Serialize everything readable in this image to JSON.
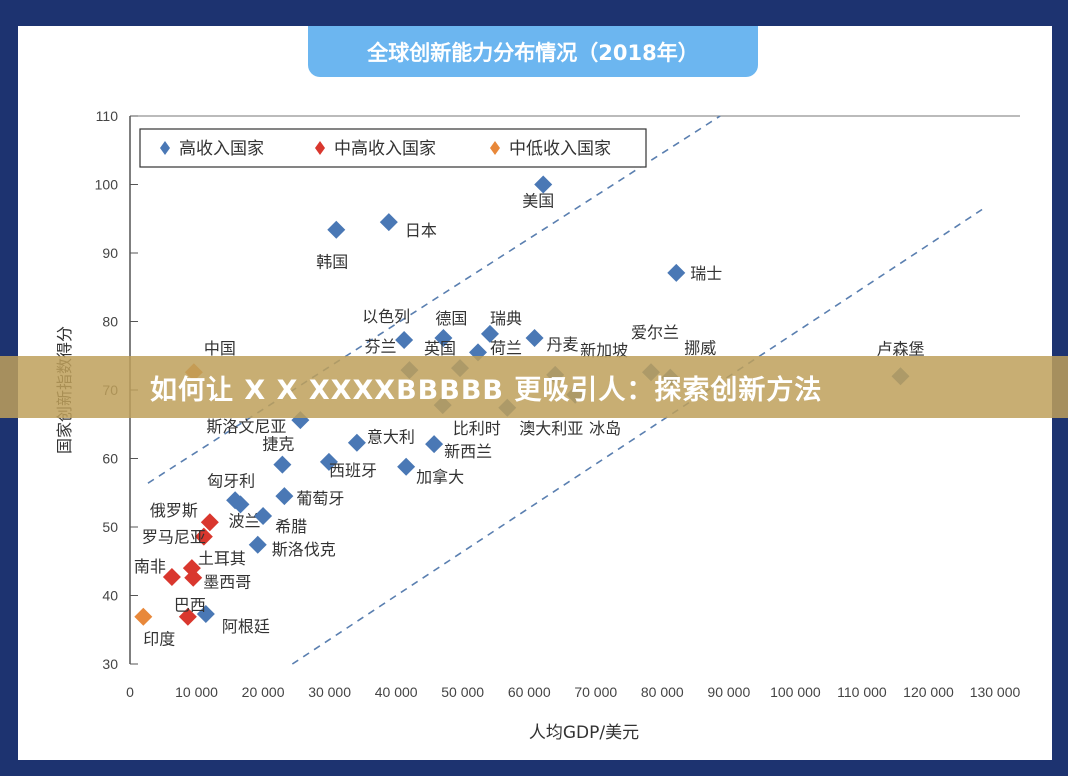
{
  "banner": {
    "text": "如何让 X X XXXXBBBBB 更吸引人：探索创新方法"
  },
  "chart_data": {
    "type": "scatter",
    "title": "全球创新能力分布情况（2018年）",
    "xlabel": "人均GDP/美元",
    "ylabel": "国家创新指数得分",
    "xlim": [
      0,
      130000
    ],
    "ylim": [
      30,
      110
    ],
    "xticks": [
      0,
      10000,
      20000,
      30000,
      40000,
      50000,
      60000,
      70000,
      80000,
      90000,
      100000,
      110000,
      120000,
      130000
    ],
    "xtick_labels": [
      "0",
      "10 000",
      "20 000",
      "30 000",
      "40 000",
      "50 000",
      "60 000",
      "70 000",
      "80 000",
      "90 000",
      "100 000",
      "110 000",
      "120 000",
      "130 000"
    ],
    "yticks": [
      30,
      40,
      50,
      60,
      70,
      80,
      90,
      100,
      110
    ],
    "grid": false,
    "legend_position": "top-left",
    "series": [
      {
        "name": "高收入国家",
        "color": "#4a78b5",
        "points": [
          {
            "label": "美国",
            "x": 62100,
            "y": 100
          },
          {
            "label": "瑞士",
            "x": 82100,
            "y": 87.1
          },
          {
            "label": "日本",
            "x": 38900,
            "y": 94.5
          },
          {
            "label": "韩国",
            "x": 31000,
            "y": 93.4
          },
          {
            "label": "以色列",
            "x": 41200,
            "y": 77.3
          },
          {
            "label": "德国",
            "x": 47100,
            "y": 77.6
          },
          {
            "label": "瑞典",
            "x": 54100,
            "y": 78.2
          },
          {
            "label": "丹麦",
            "x": 60800,
            "y": 77.6
          },
          {
            "label": "芬兰",
            "x": 42000,
            "y": 72.9
          },
          {
            "label": "英国",
            "x": 49600,
            "y": 73.2
          },
          {
            "label": "荷兰",
            "x": 52300,
            "y": 75.5
          },
          {
            "label": "新加坡",
            "x": 63900,
            "y": 72.2
          },
          {
            "label": "爱尔兰",
            "x": 78300,
            "y": 72.6
          },
          {
            "label": "挪威",
            "x": 81200,
            "y": 71.8
          },
          {
            "label": "冰岛",
            "x": 66900,
            "y": 69.3
          },
          {
            "label": "卢森堡",
            "x": 115800,
            "y": 72.0
          },
          {
            "label": "比利时",
            "x": 47000,
            "y": 67.8
          },
          {
            "label": "澳大利亚",
            "x": 56700,
            "y": 67.4
          },
          {
            "label": "斯洛文尼亚",
            "x": 25600,
            "y": 65.6
          },
          {
            "label": "捷克",
            "x": 22900,
            "y": 59.1
          },
          {
            "label": "意大利",
            "x": 34100,
            "y": 62.3
          },
          {
            "label": "西班牙",
            "x": 29900,
            "y": 59.5
          },
          {
            "label": "新西兰",
            "x": 45700,
            "y": 62.1
          },
          {
            "label": "加拿大",
            "x": 41500,
            "y": 58.8
          },
          {
            "label": "匈牙利",
            "x": 15800,
            "y": 53.9
          },
          {
            "label": "波兰",
            "x": 16600,
            "y": 53.3
          },
          {
            "label": "葡萄牙",
            "x": 23200,
            "y": 54.5
          },
          {
            "label": "希腊",
            "x": 20000,
            "y": 51.6
          },
          {
            "label": "斯洛伐克",
            "x": 19200,
            "y": 47.4
          },
          {
            "label": "阿根廷",
            "x": 11400,
            "y": 37.3
          }
        ]
      },
      {
        "name": "中高收入国家",
        "color": "#d9372e",
        "points": [
          {
            "label": "俄罗斯",
            "x": 12000,
            "y": 50.7
          },
          {
            "label": "罗马尼亚",
            "x": 11100,
            "y": 48.6
          },
          {
            "label": "土耳其",
            "x": 9300,
            "y": 44.0
          },
          {
            "label": "墨西哥",
            "x": 9500,
            "y": 42.6
          },
          {
            "label": "南非",
            "x": 6300,
            "y": 42.7
          },
          {
            "label": "巴西",
            "x": 8700,
            "y": 36.9
          }
        ]
      },
      {
        "name": "中低收入国家",
        "color": "#e8883a",
        "points": [
          {
            "label": "中国",
            "x": 9600,
            "y": 72.6
          },
          {
            "label": "印度",
            "x": 2000,
            "y": 36.9
          }
        ]
      }
    ],
    "reference_lines": [
      {
        "style": "dashed",
        "color": "#5a7fb0",
        "from": {
          "x": 2700,
          "y": 56.4
        },
        "to": {
          "x": 88700,
          "y": 110
        }
      },
      {
        "style": "dashed",
        "color": "#5a7fb0",
        "from": {
          "x": 24400,
          "y": 30
        },
        "to": {
          "x": 128600,
          "y": 96.7
        }
      }
    ]
  }
}
